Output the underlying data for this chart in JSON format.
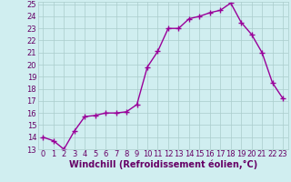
{
  "x": [
    0,
    1,
    2,
    3,
    4,
    5,
    6,
    7,
    8,
    9,
    10,
    11,
    12,
    13,
    14,
    15,
    16,
    17,
    18,
    19,
    20,
    21,
    22,
    23
  ],
  "y": [
    14.0,
    13.7,
    13.0,
    14.5,
    15.7,
    15.8,
    16.0,
    16.0,
    16.1,
    16.7,
    19.8,
    21.1,
    23.0,
    23.0,
    23.8,
    24.0,
    24.3,
    24.5,
    25.1,
    23.5,
    22.5,
    21.0,
    18.5,
    17.2
  ],
  "line_color": "#990099",
  "marker": "+",
  "marker_size": 4,
  "marker_lw": 1.0,
  "xlabel": "Windchill (Refroidissement éolien,°C)",
  "xlim": [
    -0.5,
    23.5
  ],
  "ylim": [
    13,
    25
  ],
  "yticks": [
    13,
    14,
    15,
    16,
    17,
    18,
    19,
    20,
    21,
    22,
    23,
    24,
    25
  ],
  "xticks": [
    0,
    1,
    2,
    3,
    4,
    5,
    6,
    7,
    8,
    9,
    10,
    11,
    12,
    13,
    14,
    15,
    16,
    17,
    18,
    19,
    20,
    21,
    22,
    23
  ],
  "bg_color": "#d0eef0",
  "grid_color": "#aacccc",
  "tick_label_color": "#660066",
  "axis_label_color": "#660066",
  "line_width": 1.0,
  "xlabel_fontsize": 7.0,
  "tick_fontsize": 6.0,
  "fig_width": 3.2,
  "fig_height": 2.0,
  "dpi": 100
}
